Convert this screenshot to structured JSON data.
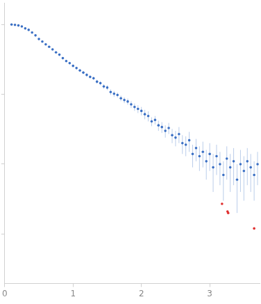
{
  "chart_data": {
    "type": "scatter",
    "log": "y",
    "grid": false,
    "tick_labels": "x",
    "marker": "circle",
    "xlim": [
      0,
      3.73
    ],
    "xticks": [
      0,
      1,
      2,
      3
    ],
    "ylim": [
      0.000195,
      2.05
    ],
    "yticks": [
      0.001,
      0.01,
      0.1,
      1
    ],
    "series": [
      {
        "color": "#3a6fc4",
        "x": [
          0.1,
          0.15,
          0.2,
          0.25,
          0.3,
          0.35,
          0.4,
          0.45,
          0.5,
          0.55,
          0.6,
          0.65,
          0.7,
          0.75,
          0.8,
          0.85,
          0.9,
          0.95,
          1.0,
          1.05,
          1.1,
          1.15,
          1.2,
          1.25,
          1.3,
          1.35,
          1.4,
          1.45,
          1.5,
          1.55,
          1.6,
          1.65,
          1.7,
          1.75,
          1.8,
          1.85,
          1.9,
          1.95,
          2.0,
          2.05,
          2.1,
          2.15,
          2.2,
          2.25,
          2.3,
          2.35,
          2.4,
          2.45,
          2.5,
          2.55,
          2.6,
          2.65,
          2.7,
          2.75,
          2.8,
          2.85,
          2.9,
          2.95,
          3.0,
          3.05,
          3.1,
          3.15,
          3.2,
          3.25,
          3.3,
          3.35,
          3.4,
          3.45,
          3.5,
          3.55,
          3.6,
          3.65,
          3.7
        ],
        "values": [
          1.0,
          0.99,
          0.97,
          0.94,
          0.88,
          0.84,
          0.77,
          0.7,
          0.62,
          0.57,
          0.52,
          0.48,
          0.44,
          0.4,
          0.37,
          0.33,
          0.3,
          0.28,
          0.256,
          0.238,
          0.22,
          0.205,
          0.19,
          0.178,
          0.17,
          0.152,
          0.145,
          0.13,
          0.125,
          0.108,
          0.102,
          0.098,
          0.088,
          0.083,
          0.079,
          0.072,
          0.066,
          0.062,
          0.058,
          0.052,
          0.049,
          0.041,
          0.043,
          0.036,
          0.034,
          0.03,
          0.033,
          0.026,
          0.024,
          0.027,
          0.02,
          0.019,
          0.022,
          0.014,
          0.017,
          0.013,
          0.015,
          0.011,
          0.014,
          0.009,
          0.013,
          0.01,
          0.007,
          0.012,
          0.009,
          0.011,
          0.006,
          0.01,
          0.008,
          0.011,
          0.009,
          0.007,
          0.01
        ],
        "errors": [
          0.01,
          0.01,
          0.01,
          0.01,
          0.01,
          0.01,
          0.01,
          0.01,
          0.01,
          0.01,
          0.01,
          0.01,
          0.01,
          0.01,
          0.01,
          0.01,
          0.01,
          0.01,
          0.01,
          0.01,
          0.01,
          0.01,
          0.01,
          0.01,
          0.01,
          0.01,
          0.01,
          0.01,
          0.01,
          0.01,
          0.01,
          0.008,
          0.008,
          0.008,
          0.008,
          0.008,
          0.008,
          0.008,
          0.008,
          0.008,
          0.008,
          0.006,
          0.006,
          0.006,
          0.006,
          0.006,
          0.006,
          0.006,
          0.006,
          0.007,
          0.006,
          0.006,
          0.007,
          0.005,
          0.006,
          0.005,
          0.006,
          0.005,
          0.006,
          0.005,
          0.006,
          0.005,
          0.004,
          0.006,
          0.005,
          0.006,
          0.004,
          0.006,
          0.005,
          0.006,
          0.005,
          0.004,
          0.005
        ]
      },
      {
        "color": "#e03030",
        "x": [
          3.18,
          3.26,
          3.27,
          3.65
        ],
        "values": [
          0.0027,
          0.0021,
          0.002,
          0.0012
        ]
      }
    ]
  }
}
